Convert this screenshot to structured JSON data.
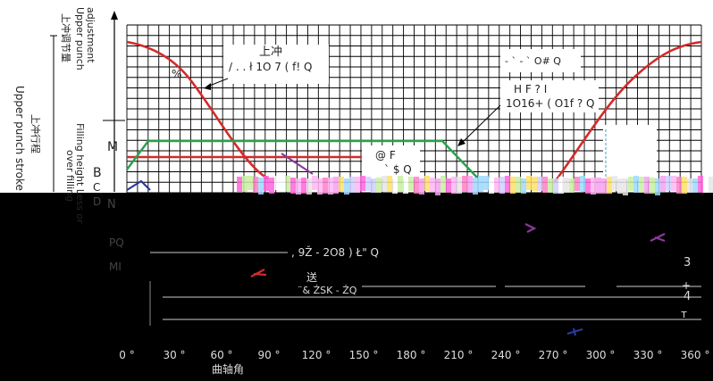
{
  "left_axis": {
    "upper_punch_adjustment_cn": "上冲调节量",
    "upper_punch_adjustment_en_1": "Upper punch",
    "upper_punch_adjustment_en_2": "adjustment",
    "upper_punch_stroke_cn": "上冲行程",
    "upper_punch_stroke_en": "Upper punch stroke",
    "filling_height_en_1": "Filling height Less or",
    "filling_height_en_2": "over filling"
  },
  "row_labels": [
    "M",
    "B",
    "C",
    "D",
    "N",
    "P",
    "M"
  ],
  "x_axis": {
    "ticks": [
      "0 °",
      "30 °",
      "60 °",
      "90 °",
      "120 °",
      "150 °",
      "180 °",
      "210 °",
      "240 °",
      "270 °",
      "300 °",
      "330 °",
      "360 °"
    ],
    "label": "曲轴角"
  },
  "annotations": {
    "upper_punch_cn": "上冲",
    "upper_punch_garbled": "/ . . ł 1Ο 7 ( f! Q",
    "percent": "%",
    "top_right_garbled": "- ` - ` Ο# Q",
    "mid_right_1": "H F  ? I",
    "mid_right_2": "1Ο16+ ( Ο1f ?  Q",
    "center_1": "@ F",
    "center_2": "` $ Q",
    "lower_1": ", 9Ž - 2Ο8 ) Ł\" Q",
    "feed_cn": "送",
    "feed_garbled": "¨& ŹSK - ŹQ",
    "right_3": "3",
    "right_4": "4",
    "right_t": "т",
    "right_plus": "+",
    "left_garble_1": "PQ",
    "left_garble_2": "MΙ"
  },
  "colors": {
    "upper_punch": "#d42a2a",
    "filling": "#2aa04a",
    "lower_punch": "#2a3aa0",
    "purple": "#8a3a9a",
    "grid": "#000000"
  }
}
